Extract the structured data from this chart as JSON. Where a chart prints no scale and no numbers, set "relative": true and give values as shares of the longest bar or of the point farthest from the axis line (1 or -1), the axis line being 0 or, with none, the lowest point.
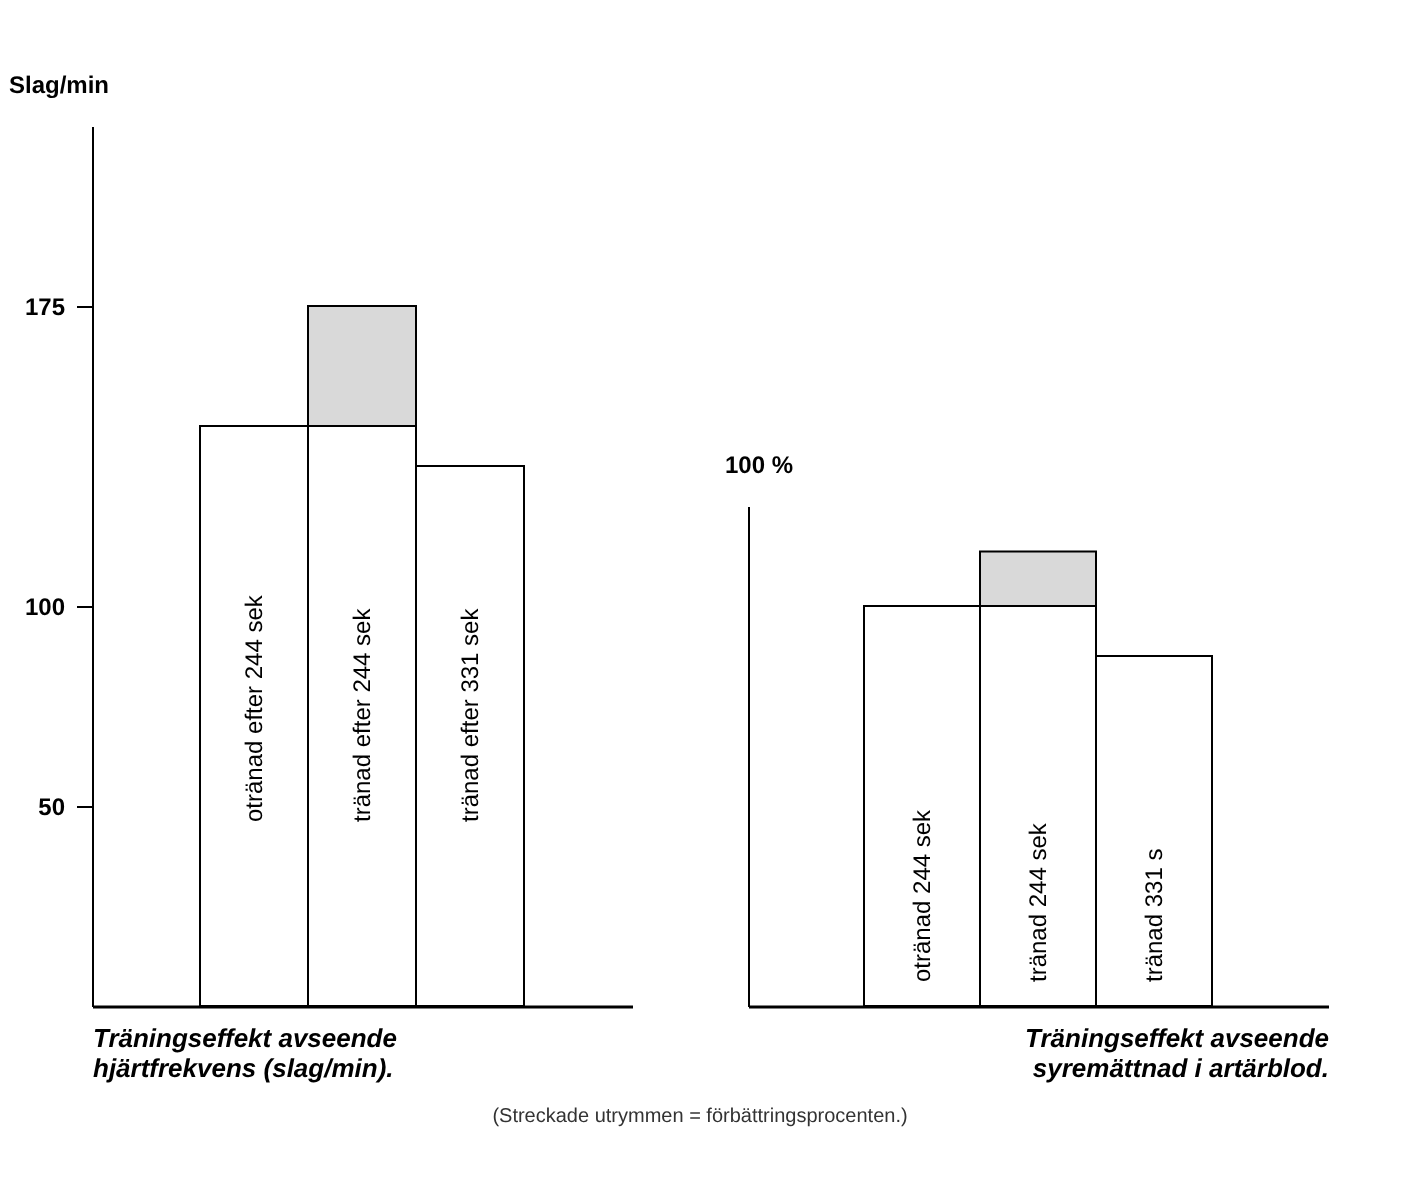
{
  "chart_data": [
    {
      "type": "bar",
      "stacked": true,
      "categories": [
        "otränad efter 244 sek",
        "tränad efter 244 sek",
        "tränad efter 331 sek"
      ],
      "series": [
        {
          "color": "#ffffff",
          "values": [
            145,
            145,
            135
          ]
        },
        {
          "color": "#d9d9d9",
          "values": [
            null,
            30,
            null
          ]
        }
      ],
      "ylabel": "Slag/min",
      "xlabel": "Träningseffekt avseende hjärtfrekvens (slag/min).",
      "ylim": [
        0,
        220
      ],
      "yticks": [
        50,
        100,
        175
      ],
      "annotations": [
        "(Streckade utrymmen = förbättringsprocenten.)"
      ]
    },
    {
      "type": "bar",
      "stacked": true,
      "relative": true,
      "categories": [
        "otränad 244 sek",
        "tränad 244 sek",
        "tränad 331 s"
      ],
      "series": [
        {
          "color": "#ffffff",
          "values": [
            0.88,
            0.88,
            0.77
          ]
        },
        {
          "color": "#d9d9d9",
          "values": [
            null,
            0.12,
            null
          ]
        }
      ],
      "ylabel": "100 %",
      "xlabel": "Träningseffekt avseende syremättnad i artärblod."
    }
  ]
}
